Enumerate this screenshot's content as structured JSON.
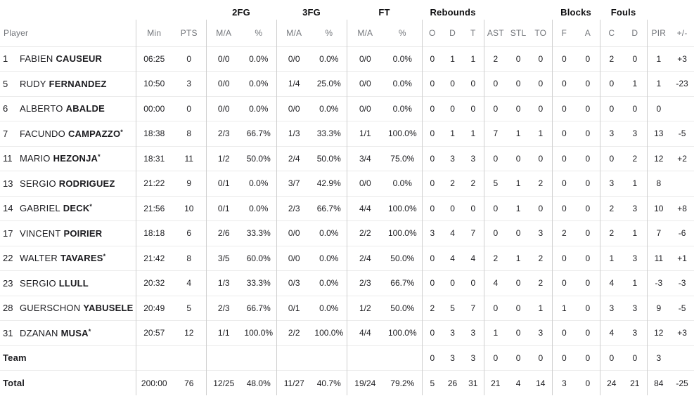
{
  "starter_mark": "*",
  "header": {
    "groups": [
      {
        "label": "",
        "span": 3
      },
      {
        "label": "2FG",
        "span": 2
      },
      {
        "label": "3FG",
        "span": 2
      },
      {
        "label": "FT",
        "span": 2
      },
      {
        "label": "Rebounds",
        "span": 3
      },
      {
        "label": "",
        "span": 3
      },
      {
        "label": "Blocks",
        "span": 2
      },
      {
        "label": "Fouls",
        "span": 2
      },
      {
        "label": "",
        "span": 2
      }
    ],
    "columns": [
      "Player",
      "Min",
      "PTS",
      "M/A",
      "%",
      "M/A",
      "%",
      "M/A",
      "%",
      "O",
      "D",
      "T",
      "AST",
      "STL",
      "TO",
      "F",
      "A",
      "C",
      "D",
      "PIR",
      "+/-"
    ]
  },
  "rows": [
    {
      "num": "1",
      "first": "FABIEN",
      "last": "CAUSEUR",
      "star": false,
      "stats": [
        "06:25",
        "0",
        "0/0",
        "0.0%",
        "0/0",
        "0.0%",
        "0/0",
        "0.0%",
        "0",
        "1",
        "1",
        "2",
        "0",
        "0",
        "0",
        "0",
        "2",
        "0",
        "1",
        "+3"
      ]
    },
    {
      "num": "5",
      "first": "RUDY",
      "last": "FERNANDEZ",
      "star": false,
      "stats": [
        "10:50",
        "3",
        "0/0",
        "0.0%",
        "1/4",
        "25.0%",
        "0/0",
        "0.0%",
        "0",
        "0",
        "0",
        "0",
        "0",
        "0",
        "0",
        "0",
        "0",
        "1",
        "1",
        "-23"
      ]
    },
    {
      "num": "6",
      "first": "ALBERTO",
      "last": "ABALDE",
      "star": false,
      "stats": [
        "00:00",
        "0",
        "0/0",
        "0.0%",
        "0/0",
        "0.0%",
        "0/0",
        "0.0%",
        "0",
        "0",
        "0",
        "0",
        "0",
        "0",
        "0",
        "0",
        "0",
        "0",
        "0",
        ""
      ]
    },
    {
      "num": "7",
      "first": "FACUNDO",
      "last": "CAMPAZZO",
      "star": true,
      "stats": [
        "18:38",
        "8",
        "2/3",
        "66.7%",
        "1/3",
        "33.3%",
        "1/1",
        "100.0%",
        "0",
        "1",
        "1",
        "7",
        "1",
        "1",
        "0",
        "0",
        "3",
        "3",
        "13",
        "-5"
      ]
    },
    {
      "num": "11",
      "first": "MARIO",
      "last": "HEZONJA",
      "star": true,
      "stats": [
        "18:31",
        "11",
        "1/2",
        "50.0%",
        "2/4",
        "50.0%",
        "3/4",
        "75.0%",
        "0",
        "3",
        "3",
        "0",
        "0",
        "0",
        "0",
        "0",
        "0",
        "2",
        "12",
        "+2"
      ]
    },
    {
      "num": "13",
      "first": "SERGIO",
      "last": "RODRIGUEZ",
      "star": false,
      "stats": [
        "21:22",
        "9",
        "0/1",
        "0.0%",
        "3/7",
        "42.9%",
        "0/0",
        "0.0%",
        "0",
        "2",
        "2",
        "5",
        "1",
        "2",
        "0",
        "0",
        "3",
        "1",
        "8",
        ""
      ]
    },
    {
      "num": "14",
      "first": "GABRIEL",
      "last": "DECK",
      "star": true,
      "stats": [
        "21:56",
        "10",
        "0/1",
        "0.0%",
        "2/3",
        "66.7%",
        "4/4",
        "100.0%",
        "0",
        "0",
        "0",
        "0",
        "1",
        "0",
        "0",
        "0",
        "2",
        "3",
        "10",
        "+8"
      ]
    },
    {
      "num": "17",
      "first": "VINCENT",
      "last": "POIRIER",
      "star": false,
      "stats": [
        "18:18",
        "6",
        "2/6",
        "33.3%",
        "0/0",
        "0.0%",
        "2/2",
        "100.0%",
        "3",
        "4",
        "7",
        "0",
        "0",
        "3",
        "2",
        "0",
        "2",
        "1",
        "7",
        "-6"
      ]
    },
    {
      "num": "22",
      "first": "WALTER",
      "last": "TAVARES",
      "star": true,
      "stats": [
        "21:42",
        "8",
        "3/5",
        "60.0%",
        "0/0",
        "0.0%",
        "2/4",
        "50.0%",
        "0",
        "4",
        "4",
        "2",
        "1",
        "2",
        "0",
        "0",
        "1",
        "3",
        "11",
        "+1"
      ]
    },
    {
      "num": "23",
      "first": "SERGIO",
      "last": "LLULL",
      "star": false,
      "stats": [
        "20:32",
        "4",
        "1/3",
        "33.3%",
        "0/3",
        "0.0%",
        "2/3",
        "66.7%",
        "0",
        "0",
        "0",
        "4",
        "0",
        "2",
        "0",
        "0",
        "4",
        "1",
        "-3",
        "-3"
      ]
    },
    {
      "num": "28",
      "first": "GUERSCHON",
      "last": "YABUSELE",
      "star": false,
      "stats": [
        "20:49",
        "5",
        "2/3",
        "66.7%",
        "0/1",
        "0.0%",
        "1/2",
        "50.0%",
        "2",
        "5",
        "7",
        "0",
        "0",
        "1",
        "1",
        "0",
        "3",
        "3",
        "9",
        "-5"
      ]
    },
    {
      "num": "31",
      "first": "DZANAN",
      "last": "MUSA",
      "star": true,
      "stats": [
        "20:57",
        "12",
        "1/1",
        "100.0%",
        "2/2",
        "100.0%",
        "4/4",
        "100.0%",
        "0",
        "3",
        "3",
        "1",
        "0",
        "3",
        "0",
        "0",
        "4",
        "3",
        "12",
        "+3"
      ]
    },
    {
      "num": "",
      "first": "",
      "last": "Team",
      "star": false,
      "stats": [
        "",
        "",
        "",
        "",
        "",
        "",
        "",
        "",
        "0",
        "3",
        "3",
        "0",
        "0",
        "0",
        "0",
        "0",
        "0",
        "0",
        "3",
        ""
      ]
    },
    {
      "num": "",
      "first": "",
      "last": "Total",
      "star": false,
      "stats": [
        "200:00",
        "76",
        "12/25",
        "48.0%",
        "11/27",
        "40.7%",
        "19/24",
        "79.2%",
        "5",
        "26",
        "31",
        "21",
        "4",
        "14",
        "3",
        "0",
        "24",
        "21",
        "84",
        "-25"
      ]
    }
  ]
}
